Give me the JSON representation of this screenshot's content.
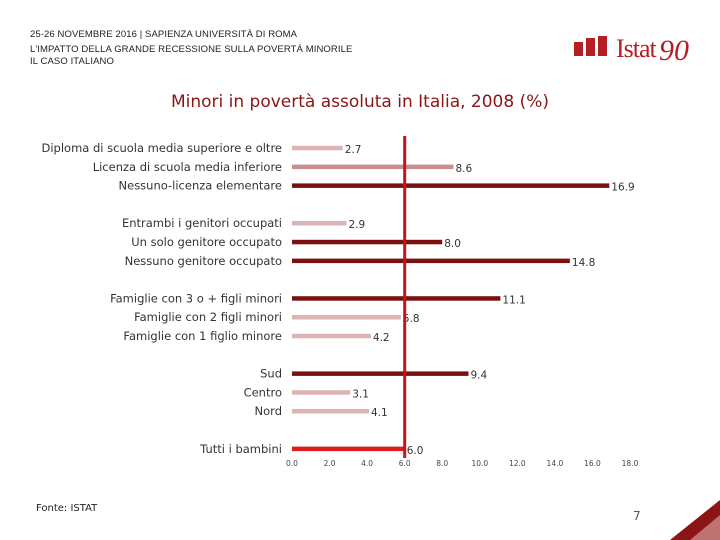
{
  "header": {
    "line1": "25-26 NOVEMBRE 2016 | SAPIENZA UNIVERSITÀ DI ROMA",
    "line2": "L'IMPATTO DELLA GRANDE RECESSIONE SULLA POVERTÁ MINORILE",
    "line3": "IL CASO ITALIANO"
  },
  "logo": {
    "text": "Istat",
    "number": "90"
  },
  "colors": {
    "light": "#ddb3b3",
    "mid": "#cc8f8f",
    "dark": "#7a1010",
    "highlight": "#e01b1b",
    "reference": "#c0161b",
    "title": "#8b1515",
    "corner_dark": "#8b1515",
    "corner_light": "#d69a9a"
  },
  "chart_data": {
    "type": "bar",
    "orientation": "horizontal",
    "title": "Minori in povertà assoluta in Italia, 2008 (%)",
    "xlim": [
      0,
      18
    ],
    "x_ticks": [
      "0.0",
      "2.0",
      "4.0",
      "6.0",
      "8.0",
      "10.0",
      "12.0",
      "14.0",
      "16.0",
      "18.0"
    ],
    "reference_value": 6.0,
    "groups": [
      {
        "bars": [
          {
            "label": "Diploma di scuola media superiore e oltre",
            "value": 2.7,
            "value_label": "2.7",
            "shade": "light"
          },
          {
            "label": "Licenza di scuola media inferiore",
            "value": 8.6,
            "value_label": "8.6",
            "shade": "mid"
          },
          {
            "label": "Nessuno-licenza elementare",
            "value": 16.9,
            "value_label": "16.9",
            "shade": "dark"
          }
        ]
      },
      {
        "bars": [
          {
            "label": "Entrambi i genitori occupati",
            "value": 2.9,
            "value_label": "2.9",
            "shade": "light"
          },
          {
            "label": "Un solo genitore occupato",
            "value": 8.0,
            "value_label": "8.0",
            "shade": "dark"
          },
          {
            "label": "Nessuno genitore occupato",
            "value": 14.8,
            "value_label": "14.8",
            "shade": "dark"
          }
        ]
      },
      {
        "bars": [
          {
            "label": "Famiglie con 3 o + figli minori",
            "value": 11.1,
            "value_label": "11.1",
            "shade": "dark"
          },
          {
            "label": "Famiglie con 2 figli minori",
            "value": 5.8,
            "value_label": "5.8",
            "shade": "light"
          },
          {
            "label": "Famiglie con 1 figlio minore",
            "value": 4.2,
            "value_label": "4.2",
            "shade": "light"
          }
        ]
      },
      {
        "bars": [
          {
            "label": "Sud",
            "value": 9.4,
            "value_label": "9.4",
            "shade": "dark"
          },
          {
            "label": "Centro",
            "value": 3.1,
            "value_label": "3.1",
            "shade": "light"
          },
          {
            "label": "Nord",
            "value": 4.1,
            "value_label": "4.1",
            "shade": "light"
          }
        ]
      },
      {
        "bars": [
          {
            "label": "Tutti i bambini",
            "value": 6.0,
            "value_label": "6.0",
            "shade": "highlight"
          }
        ]
      }
    ]
  },
  "footer": {
    "source": "Fonte: ISTAT",
    "page": "7"
  }
}
